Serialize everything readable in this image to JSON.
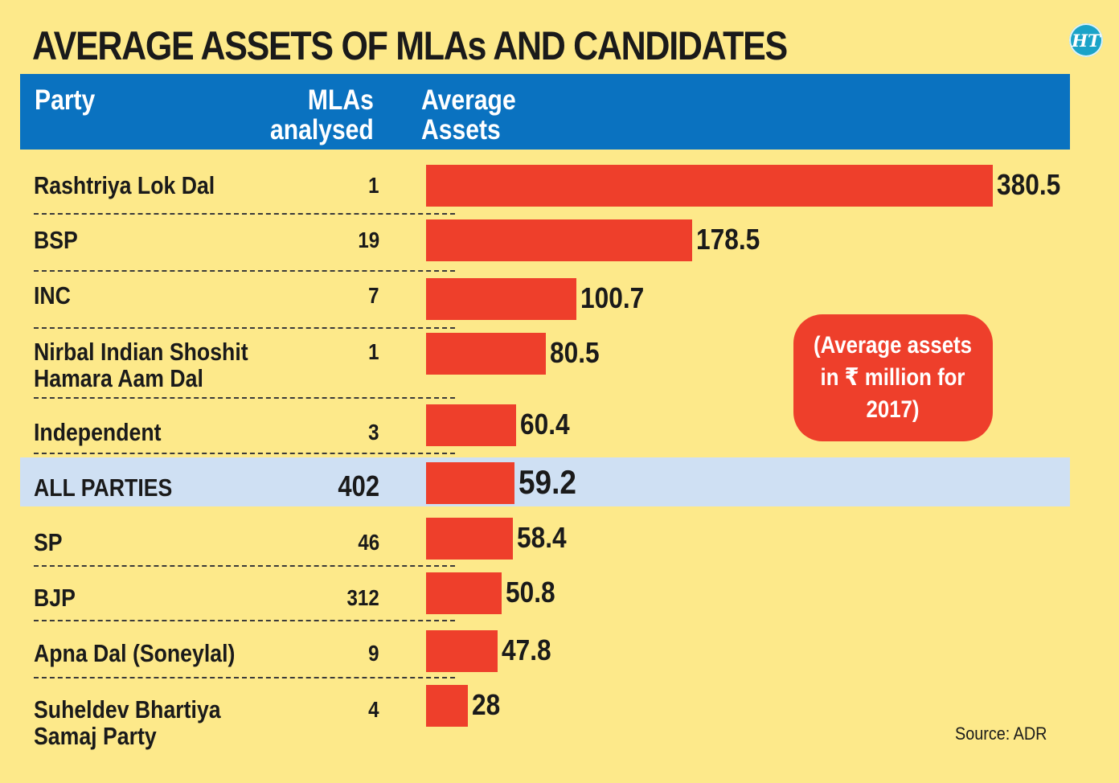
{
  "title": "AVERAGE ASSETS OF MLAs AND CANDIDATES",
  "logo_text": "HT",
  "header": {
    "party": "Party",
    "mlas": "MLAs\nanalysed",
    "assets": "Average\nAssets"
  },
  "note": "(Average assets\nin ₹ million for\n2017)",
  "source": "Source: ADR",
  "colors": {
    "background": "#fde98a",
    "header": "#0a72c0",
    "bar": "#ee3f2b",
    "highlight": "#cfe0f3"
  },
  "chart_data": {
    "type": "bar",
    "orientation": "horizontal",
    "title": "AVERAGE ASSETS OF MLAs AND CANDIDATES",
    "xlabel": "Average Assets (₹ million, 2017)",
    "ylabel": "Party",
    "xlim": [
      0,
      380.5
    ],
    "grid": false,
    "highlighted_category": "ALL PARTIES",
    "categories": [
      "Rashtriya Lok Dal",
      "BSP",
      "INC",
      "Nirbal Indian Shoshit\nHamara Aam Dal",
      "Independent",
      "ALL PARTIES",
      "SP",
      "BJP",
      "Apna Dal (Soneylal)",
      "Suheldev Bhartiya\nSamaj Party"
    ],
    "mlas_analysed": [
      "1",
      "19",
      "7",
      "1",
      "3",
      "402",
      "46",
      "312",
      "9",
      "4"
    ],
    "values": [
      380.5,
      178.5,
      100.7,
      80.5,
      60.4,
      59.2,
      58.4,
      50.8,
      47.8,
      28
    ],
    "value_labels": [
      "380.5",
      "178.5",
      "100.7",
      "80.5",
      "60.4",
      "59.2",
      "58.4",
      "50.8",
      "47.8",
      "28"
    ]
  }
}
